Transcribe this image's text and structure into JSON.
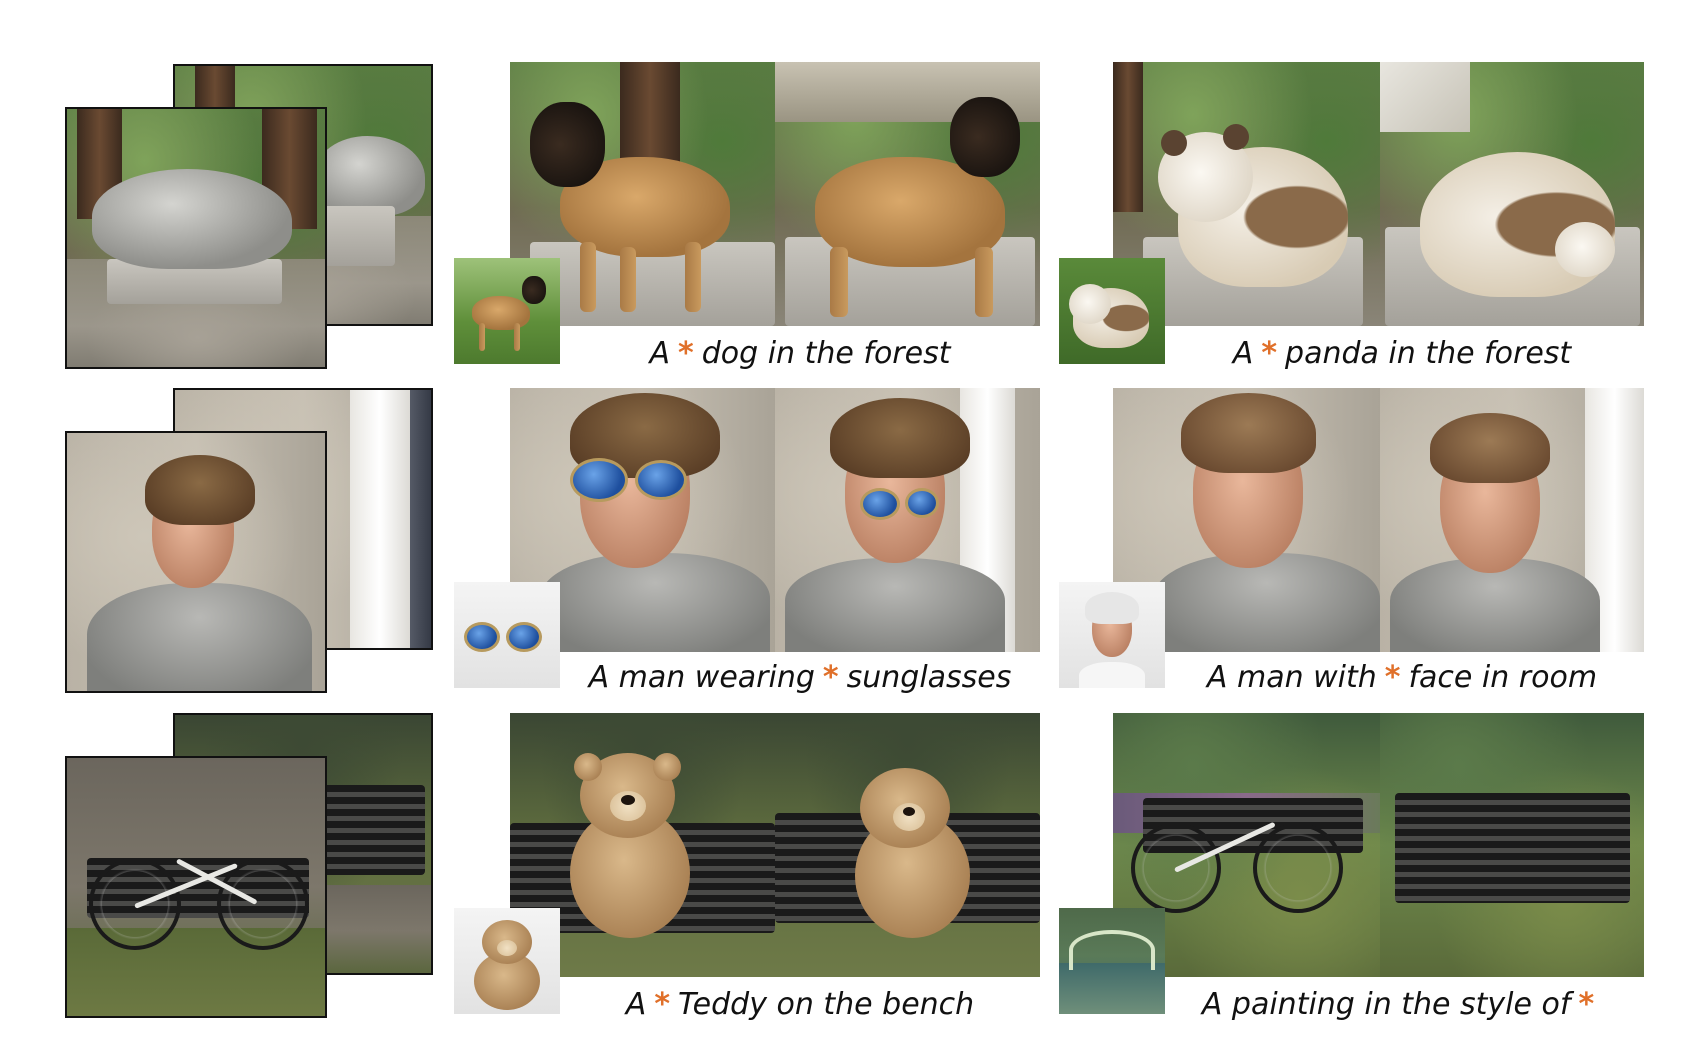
{
  "accent_color": "#e0702a",
  "captions": [
    {
      "pre": "A",
      "star": "*",
      "post": "dog in the forest"
    },
    {
      "pre": "A",
      "star": "*",
      "post": "panda in the forest"
    },
    {
      "pre": "A man wearing",
      "star": "*",
      "post": "sunglasses"
    },
    {
      "pre": "A man with",
      "star": "*",
      "post": "face in room"
    },
    {
      "pre": "A",
      "star": "*",
      "post": "Teddy on the bench"
    },
    {
      "pre": "A painting in the style of",
      "star": "*",
      "post": ""
    }
  ]
}
